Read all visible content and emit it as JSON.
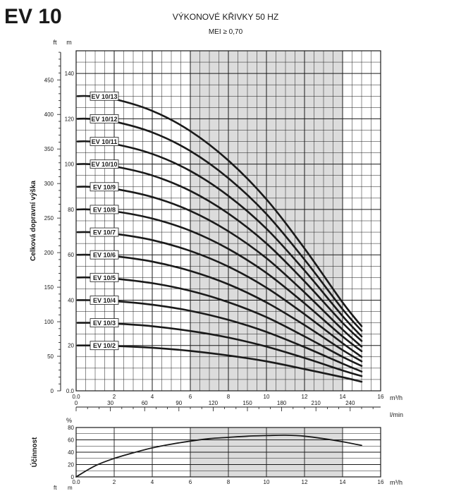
{
  "page": {
    "heading": "EV 10",
    "title": "VÝKONOVÉ KŘIVKY 50 HZ",
    "subtitle": "MEI ≥ 0,70",
    "unit_ft": "ft",
    "unit_m": "m",
    "unit_m3h": "m³/h",
    "unit_lmin": "l/min",
    "unit_percent": "%",
    "ylabel_head": "Celková dopravní výška",
    "ylabel_eff": "Účinnost"
  },
  "chart_data": [
    {
      "type": "line",
      "title": "",
      "xlabel": "m³/h",
      "ylabel": "Celková dopravní výška",
      "x_unit": "m³/h",
      "y_unit": "m",
      "xlim": [
        0,
        16
      ],
      "ylim": [
        0,
        150
      ],
      "x_ticks": [
        "0.0",
        "2",
        "4",
        "6",
        "8",
        "10",
        "12",
        "14",
        "16"
      ],
      "y_ticks_m": [
        "0.0",
        "20",
        "40",
        "60",
        "80",
        "100",
        "120",
        "140"
      ],
      "y_ticks_ft": [
        "0",
        "50",
        "100",
        "150",
        "200",
        "250",
        "300",
        "350",
        "400",
        "450"
      ],
      "secondary_x_ticks_lmin": [
        "0",
        "30",
        "60",
        "90",
        "120",
        "150",
        "180",
        "210",
        "240"
      ],
      "highlight_range_x": [
        6,
        14
      ],
      "grid": true,
      "series": [
        {
          "name": "EV 10/2",
          "x": [
            0.7,
            2,
            4,
            6,
            8,
            10,
            12,
            14,
            15
          ],
          "y": [
            20,
            19.8,
            19,
            17.6,
            15.6,
            13,
            9.6,
            6,
            4
          ]
        },
        {
          "name": "EV 10/3",
          "x": [
            0.7,
            2,
            4,
            6,
            8,
            10,
            12,
            14,
            15
          ],
          "y": [
            30,
            29.7,
            28.5,
            26.4,
            23.5,
            19.5,
            14.5,
            9,
            6.5
          ]
        },
        {
          "name": "EV 10/4",
          "x": [
            0.7,
            2,
            4,
            6,
            8,
            10,
            12,
            14,
            15
          ],
          "y": [
            40,
            39.6,
            38,
            35.3,
            31.3,
            26,
            19.3,
            12,
            8.5
          ]
        },
        {
          "name": "EV 10/5",
          "x": [
            0.7,
            2,
            4,
            6,
            8,
            10,
            12,
            14,
            15
          ],
          "y": [
            50,
            49.5,
            47.5,
            44.1,
            39.1,
            32.5,
            24,
            15,
            11
          ]
        },
        {
          "name": "EV 10/6",
          "x": [
            0.7,
            2,
            4,
            6,
            8,
            10,
            12,
            14,
            15
          ],
          "y": [
            60,
            59.4,
            57,
            52.9,
            47,
            39,
            29,
            18,
            13
          ]
        },
        {
          "name": "EV 10/7",
          "x": [
            0.7,
            2,
            4,
            6,
            8,
            10,
            12,
            14,
            15
          ],
          "y": [
            70,
            69.3,
            66.5,
            61.7,
            54.8,
            45.5,
            33.8,
            21,
            15
          ]
        },
        {
          "name": "EV 10/8",
          "x": [
            0.7,
            2,
            4,
            6,
            8,
            10,
            12,
            14,
            15
          ],
          "y": [
            80,
            79.2,
            76,
            70.6,
            62.6,
            52,
            38.6,
            24,
            17.5
          ]
        },
        {
          "name": "EV 10/9",
          "x": [
            0.7,
            2,
            4,
            6,
            8,
            10,
            12,
            14,
            15
          ],
          "y": [
            90,
            89.1,
            85.5,
            79.4,
            70.4,
            58.5,
            43.4,
            27,
            19.5
          ]
        },
        {
          "name": "EV 10/10",
          "x": [
            0.7,
            2,
            4,
            6,
            8,
            10,
            12,
            14,
            15
          ],
          "y": [
            100,
            99,
            95,
            88.2,
            78.2,
            65,
            48.3,
            30,
            22
          ]
        },
        {
          "name": "EV 10/11",
          "x": [
            0.7,
            2,
            4,
            6,
            8,
            10,
            12,
            14,
            15
          ],
          "y": [
            110,
            108.9,
            104.5,
            97,
            86,
            71.5,
            53.1,
            33,
            24
          ]
        },
        {
          "name": "EV 10/12",
          "x": [
            0.7,
            2,
            4,
            6,
            8,
            10,
            12,
            14,
            15
          ],
          "y": [
            120,
            118.8,
            114,
            105.8,
            93.8,
            78,
            57.9,
            36,
            26.5
          ]
        },
        {
          "name": "EV 10/13",
          "x": [
            0.7,
            2,
            4,
            6,
            8,
            10,
            12,
            14,
            15
          ],
          "y": [
            130,
            128.7,
            123.5,
            114.6,
            101.6,
            84.5,
            62.8,
            39,
            28.5
          ]
        }
      ]
    },
    {
      "type": "line",
      "title": "",
      "xlabel": "m³/h",
      "ylabel": "Účinnost",
      "x_unit": "m³/h",
      "y_unit": "%",
      "xlim": [
        0,
        16
      ],
      "ylim": [
        0,
        80
      ],
      "x_ticks": [
        "0.0",
        "2",
        "4",
        "6",
        "8",
        "10",
        "12",
        "14",
        "16"
      ],
      "y_ticks": [
        "0",
        "20",
        "40",
        "60",
        "80"
      ],
      "highlight_range_x": [
        6,
        14
      ],
      "grid": true,
      "series": [
        {
          "x": [
            0,
            1,
            2,
            3,
            4,
            5,
            6,
            7,
            8,
            9,
            10,
            11,
            12,
            13,
            14,
            15
          ],
          "y": [
            0,
            18,
            30,
            39,
            47,
            53,
            58,
            62,
            64,
            66,
            67,
            67.5,
            66,
            62,
            57,
            51
          ]
        }
      ]
    }
  ]
}
